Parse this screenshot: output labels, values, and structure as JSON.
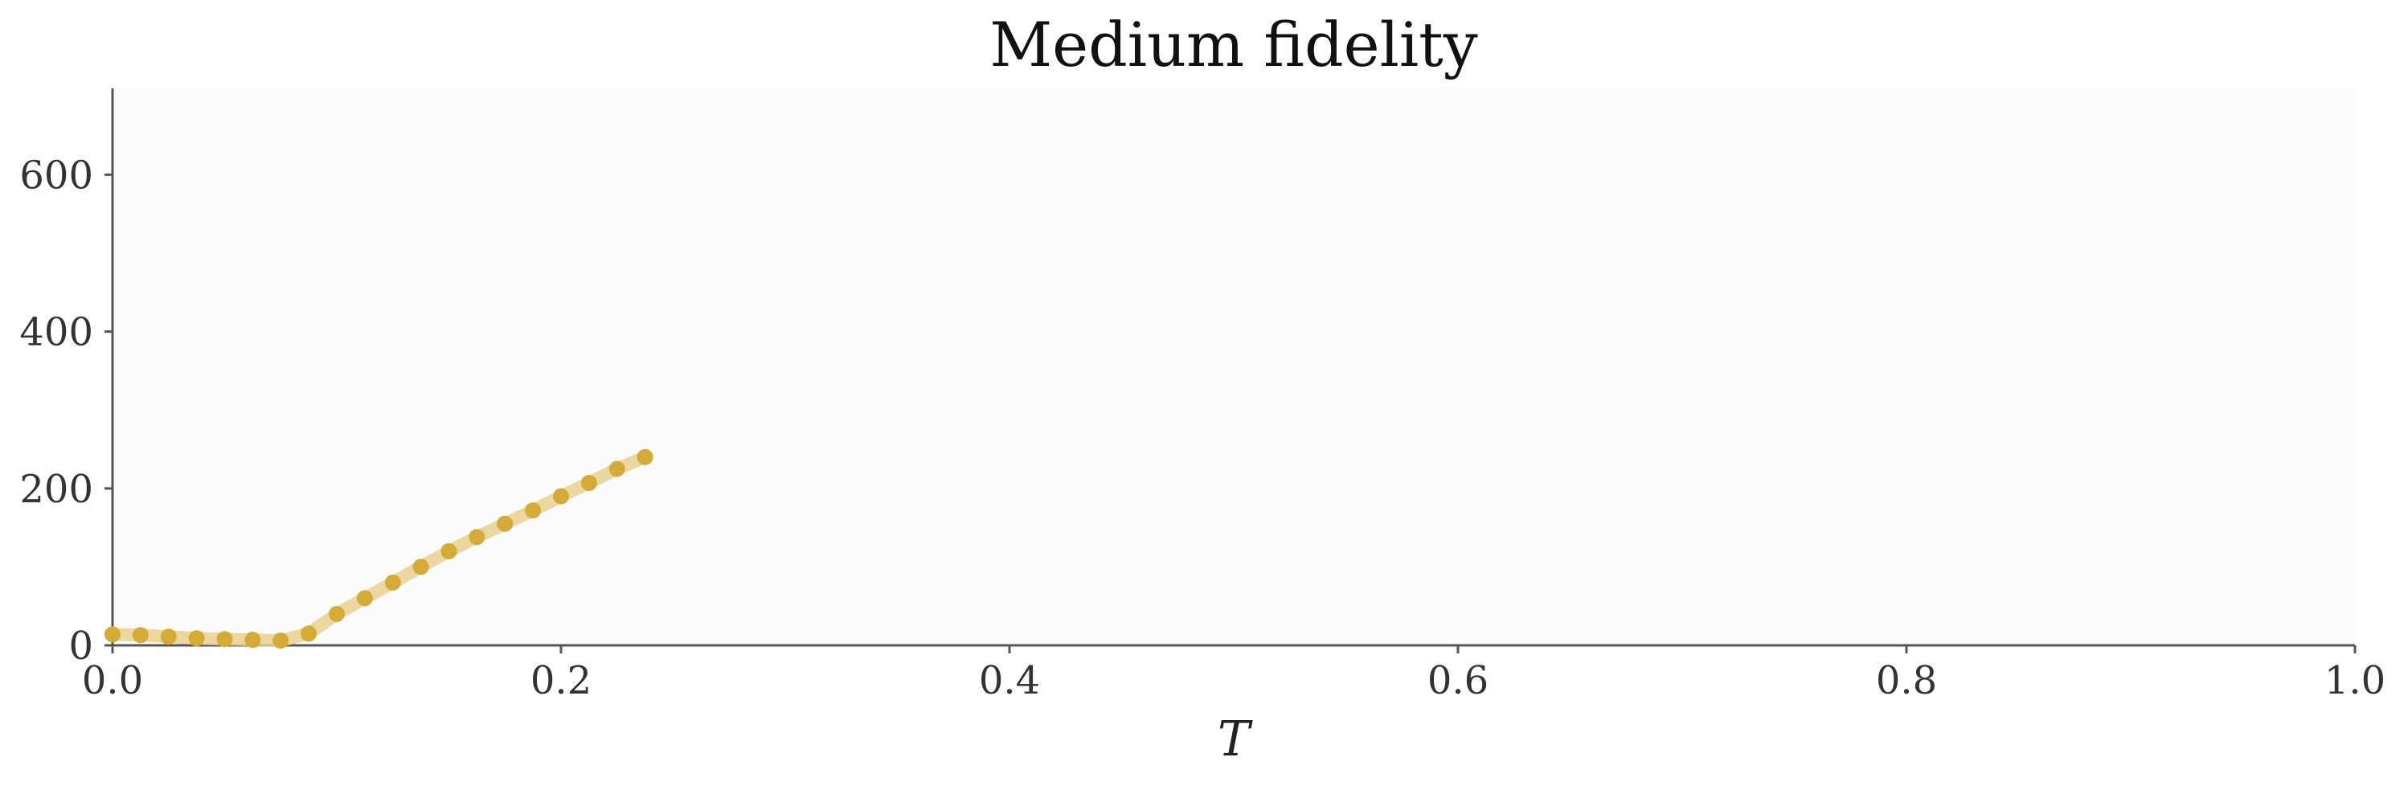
{
  "chart_data": {
    "type": "line",
    "title": "Medium fidelity",
    "xlabel": "T",
    "ylabel": "",
    "xlim": [
      0.0,
      1.0
    ],
    "ylim": [
      0,
      710
    ],
    "x_ticks": [
      "0.0",
      "0.2",
      "0.4",
      "0.6",
      "0.8",
      "1.0"
    ],
    "y_ticks": [
      "0",
      "200",
      "400",
      "600"
    ],
    "grid": false,
    "legend": "none",
    "colors": {
      "plot_background": "#fcfcfc",
      "marker": "#d4ab36",
      "line": "#e8d08e"
    },
    "series": [
      {
        "x": [
          0.0,
          0.0125,
          0.025,
          0.0375,
          0.05,
          0.0625,
          0.075,
          0.0875,
          0.1,
          0.1125,
          0.125,
          0.1375,
          0.15,
          0.1625,
          0.175,
          0.1875,
          0.2,
          0.2125,
          0.225,
          0.2375
        ],
        "values": [
          14,
          13,
          11,
          9,
          8,
          7,
          6,
          15,
          40,
          60,
          80,
          100,
          120,
          138,
          155,
          172,
          190,
          207,
          225,
          240
        ]
      }
    ]
  }
}
